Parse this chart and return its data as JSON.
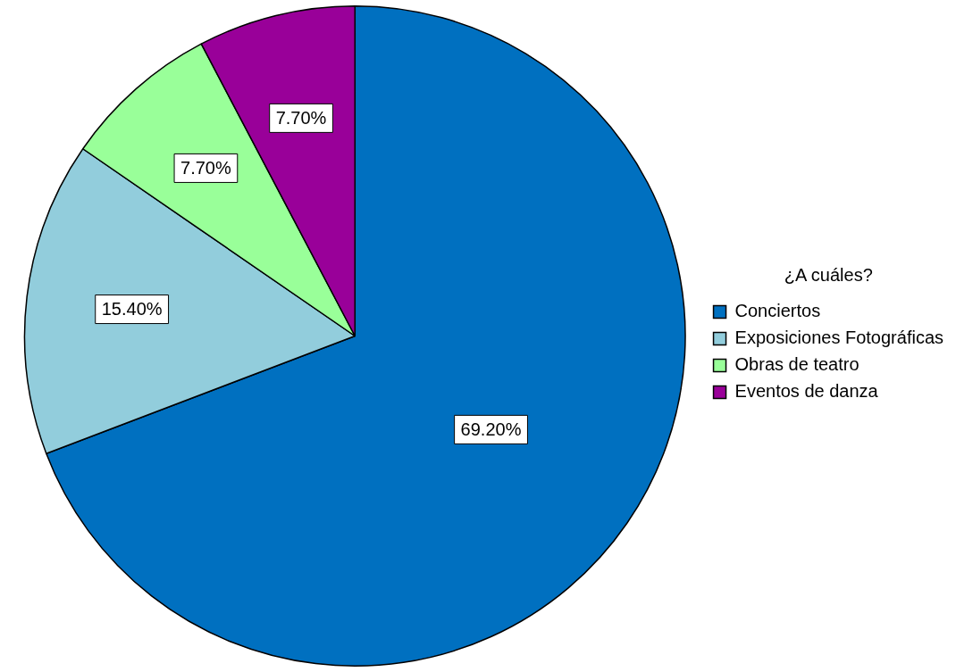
{
  "chart_data": {
    "type": "pie",
    "legend_title": "¿A cuáles?",
    "legend": "right",
    "categories": [
      "Conciertos",
      "Exposiciones Fotográficas",
      "Obras de teatro",
      "Eventos de danza"
    ],
    "values": [
      69.2,
      15.4,
      7.7,
      7.7
    ],
    "value_labels": [
      "69.20%",
      "15.40%",
      "7.70%",
      "7.70%"
    ],
    "colors": [
      "#0070c0",
      "#92cddc",
      "#99ff99",
      "#990099"
    ]
  }
}
